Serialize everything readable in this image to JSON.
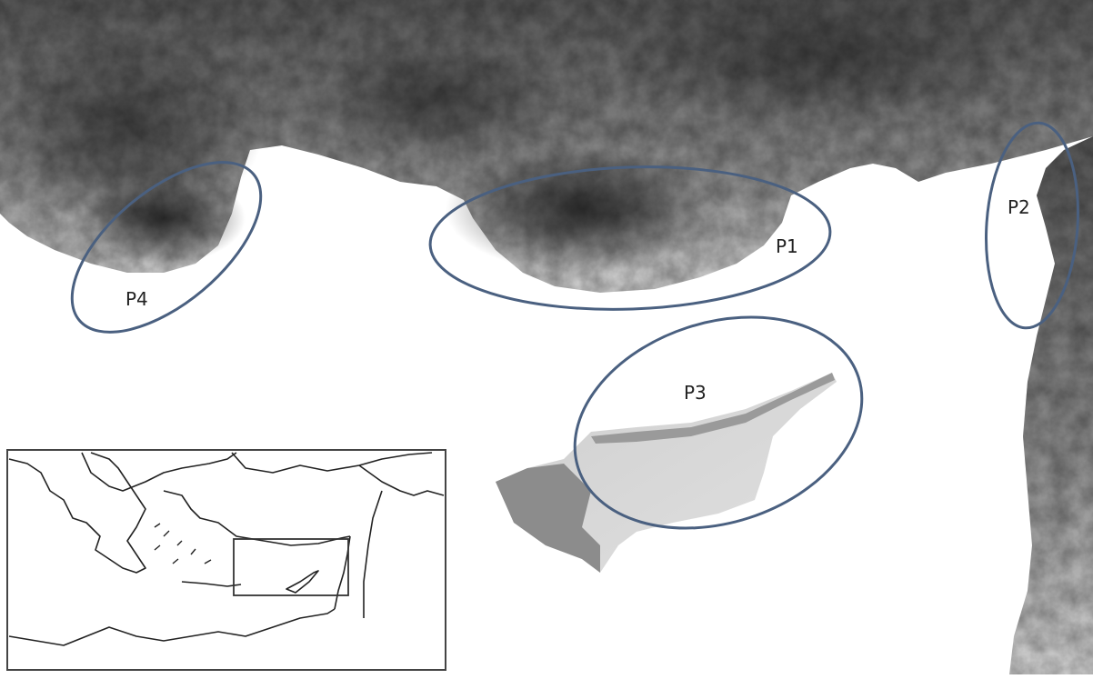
{
  "regions": [
    {
      "id": "p1",
      "label": "P1"
    },
    {
      "id": "p2",
      "label": "P2"
    },
    {
      "id": "p3",
      "label": "P3"
    },
    {
      "id": "p4",
      "label": "P4"
    }
  ],
  "colors": {
    "ellipse_stroke": "#4a6080",
    "sea": "#ffffff",
    "land_dark": "#3a3a3a",
    "land_mid": "#7a7a7a",
    "land_light": "#c8c8c8",
    "inset_line": "#333333"
  }
}
